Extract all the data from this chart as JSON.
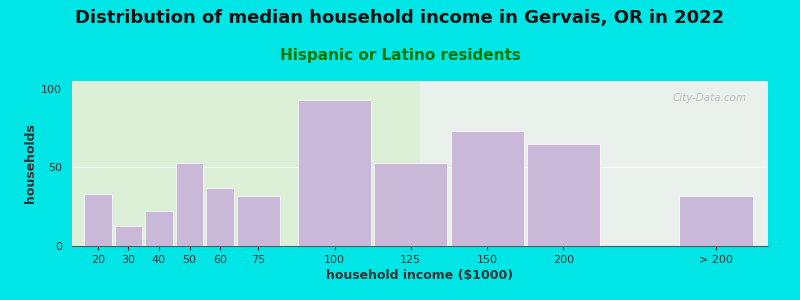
{
  "title": "Distribution of median household income in Gervais, OR in 2022",
  "subtitle": "Hispanic or Latino residents",
  "xlabel": "household income ($1000)",
  "ylabel": "households",
  "bar_color": "#c9b8d8",
  "background_color": "#00e5e5",
  "categories": [
    "20",
    "30",
    "40",
    "50",
    "60",
    "75",
    "100",
    "125",
    "150",
    "200",
    "> 200"
  ],
  "values": [
    33,
    13,
    22,
    53,
    37,
    32,
    93,
    53,
    73,
    65,
    32
  ],
  "bar_positions": [
    18,
    28,
    38,
    48,
    58,
    68,
    88,
    113,
    138,
    163,
    213
  ],
  "bar_widths": [
    9,
    9,
    9,
    9,
    9,
    14,
    24,
    24,
    24,
    24,
    24
  ],
  "xlim": [
    14,
    242
  ],
  "ylim": [
    0,
    105
  ],
  "yticks": [
    0,
    50,
    100
  ],
  "title_fontsize": 13,
  "subtitle_fontsize": 11,
  "subtitle_color": "#007700",
  "axis_label_fontsize": 9,
  "watermark": "City-Data.com"
}
